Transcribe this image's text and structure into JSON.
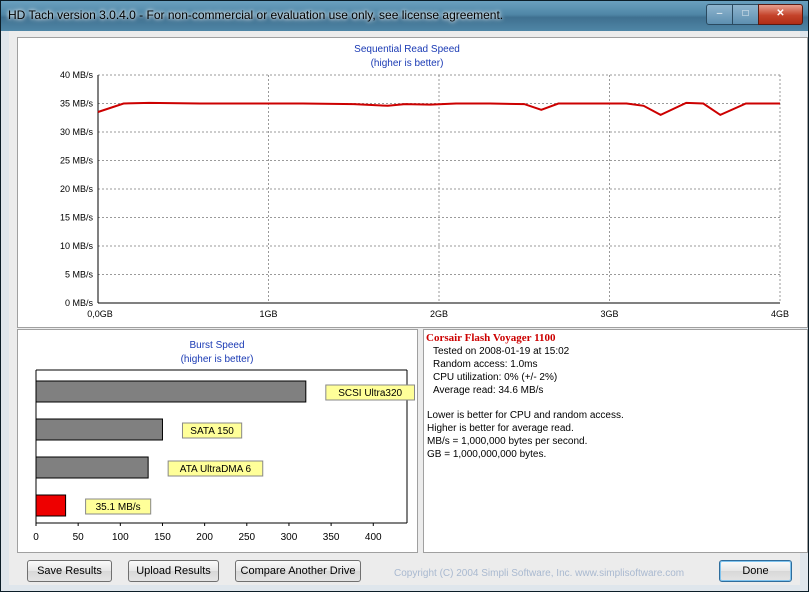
{
  "window": {
    "title": "HD Tach version 3.0.4.0  - For non-commercial or evaluation use only, see license agreement."
  },
  "sequential_chart": {
    "title": "Sequential Read Speed",
    "subtitle": "(higher is better)",
    "y_ticks": [
      "40 MB/s",
      "35 MB/s",
      "30 MB/s",
      "25 MB/s",
      "20 MB/s",
      "15 MB/s",
      "10 MB/s",
      "5 MB/s",
      "0 MB/s"
    ],
    "x_ticks": [
      "0,0GB",
      "1GB",
      "2GB",
      "3GB",
      "4GB"
    ],
    "line_color": "#cc0000"
  },
  "burst_chart": {
    "title": "Burst Speed",
    "subtitle": "(higher is better)",
    "x_ticks": [
      "0",
      "50",
      "100",
      "150",
      "200",
      "250",
      "300",
      "350",
      "400"
    ],
    "label_bg": "#ffff99",
    "bar_gray": "#808080",
    "bar_red": "#ee0000"
  },
  "info": {
    "drive_name": "Corsair Flash Voyager 1100",
    "tested_on": "Tested on 2008-01-19 at 15:02",
    "random_access": "Random access: 1.0ms",
    "cpu_utilization": "CPU utilization: 0% (+/- 2%)",
    "average_read": "Average read: 34.6 MB/s",
    "note1": "Lower is better for CPU and random access.",
    "note2": "Higher is better for average read.",
    "note3": "MB/s = 1,000,000 bytes per second.",
    "note4": "GB = 1,000,000,000 bytes."
  },
  "buttons": {
    "save": "Save Results",
    "upload": "Upload Results",
    "compare": "Compare Another Drive",
    "done": "Done"
  },
  "copyright": "Copyright (C) 2004 Simpli Software, Inc. www.simplisoftware.com",
  "chart_data": [
    {
      "type": "line",
      "title": "Sequential Read Speed",
      "subtitle": "(higher is better)",
      "xlabel": "",
      "ylabel": "",
      "x_unit": "GB",
      "y_unit": "MB/s",
      "xlim": [
        0,
        4
      ],
      "ylim": [
        0,
        40
      ],
      "grid": true,
      "series": [
        {
          "x": [
            0,
            0.15,
            0.3,
            0.6,
            0.9,
            1.2,
            1.5,
            1.7,
            1.8,
            1.95,
            2.1,
            2.3,
            2.5,
            2.6,
            2.7,
            2.9,
            3.1,
            3.2,
            3.3,
            3.45,
            3.55,
            3.65,
            3.8,
            3.9,
            4.0
          ],
          "y": [
            33.5,
            35.0,
            35.1,
            35.0,
            35.0,
            35.0,
            34.9,
            34.6,
            34.9,
            34.8,
            35.0,
            35.0,
            34.9,
            33.9,
            35.0,
            35.0,
            35.0,
            34.6,
            33.0,
            35.1,
            35.0,
            33.0,
            35.0,
            35.0,
            35.0
          ]
        }
      ]
    },
    {
      "type": "bar",
      "orientation": "horizontal",
      "title": "Burst Speed",
      "subtitle": "(higher is better)",
      "xlim": [
        0,
        440
      ],
      "categories": [
        "SCSI Ultra320",
        "SATA 150",
        "ATA UltraDMA 6",
        "35.1 MB/s"
      ],
      "values": [
        320,
        150,
        133,
        35.1
      ]
    }
  ]
}
